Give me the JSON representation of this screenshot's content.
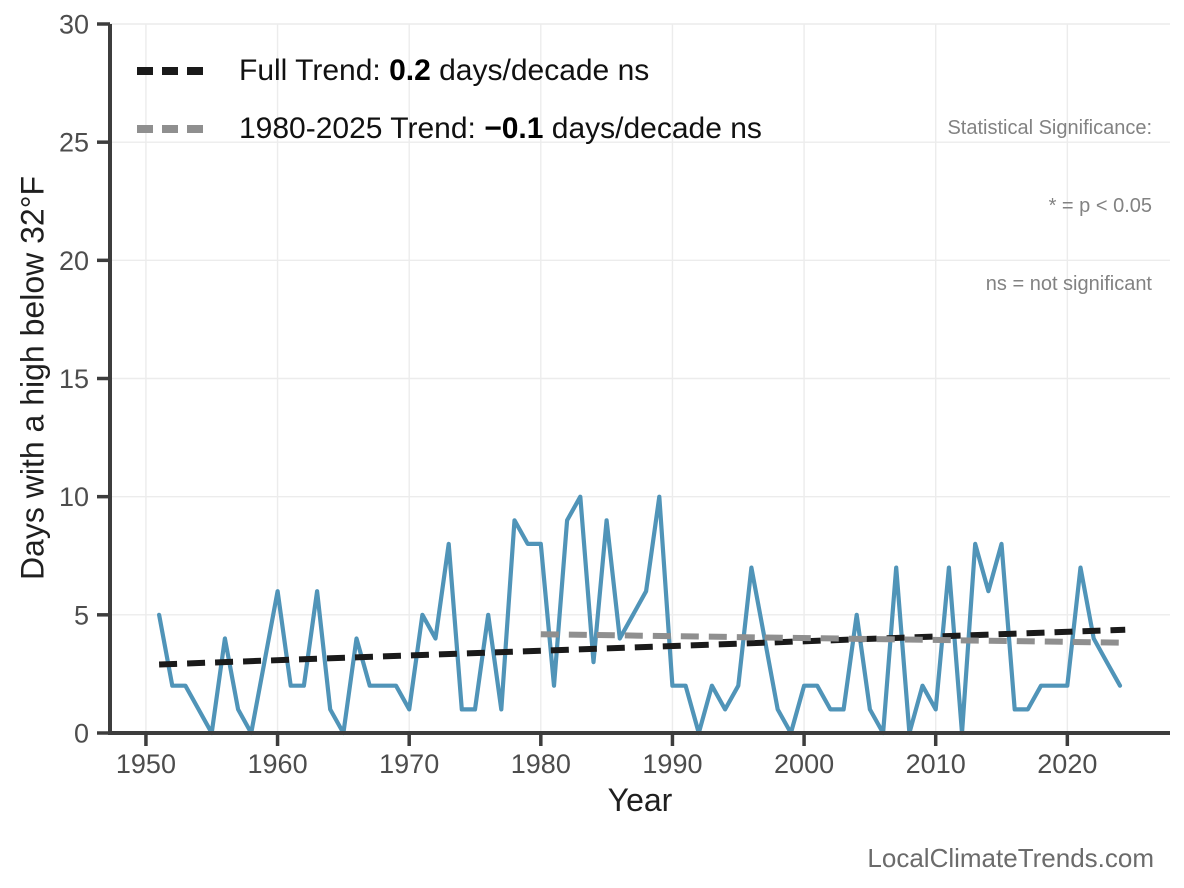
{
  "page": {
    "background": "#ffffff"
  },
  "legend": {
    "full_trend": {
      "prefix": "Full Trend: ",
      "value": "0.2",
      "suffix": " days/decade ns",
      "color": "#1a1a1a"
    },
    "recent_trend": {
      "prefix": "1980-2025 Trend: ",
      "value": "−0.1",
      "suffix": " days/decade ns",
      "color": "#8f8f8f"
    }
  },
  "significance_note": {
    "line1": "Statistical Significance:",
    "line2": "* = p < 0.05",
    "line3": "ns = not significant"
  },
  "footer": {
    "text": "LocalClimateTrends.com"
  },
  "chart_data": {
    "type": "line",
    "title": "",
    "xlabel": "Year",
    "ylabel": "Days with a high below 32°F",
    "xlim": [
      1947.27,
      2027.8
    ],
    "ylim": [
      0,
      30
    ],
    "x_ticks": [
      1950,
      1960,
      1970,
      1980,
      1990,
      2000,
      2010,
      2020
    ],
    "y_ticks": [
      0,
      5,
      10,
      15,
      20,
      25,
      30
    ],
    "grid": true,
    "colors": {
      "axis": "#3d3d3d",
      "grid": "#ececec",
      "tick_label": "#4d4d4d",
      "line": "#5094b8"
    },
    "series": [
      {
        "name": "days-high-below-32",
        "color": "#5094b8",
        "x": [
          1951,
          1952,
          1953,
          1954,
          1955,
          1956,
          1957,
          1958,
          1959,
          1960,
          1961,
          1962,
          1963,
          1964,
          1965,
          1966,
          1967,
          1968,
          1969,
          1970,
          1971,
          1972,
          1973,
          1974,
          1975,
          1976,
          1977,
          1978,
          1979,
          1980,
          1981,
          1982,
          1983,
          1984,
          1985,
          1986,
          1987,
          1988,
          1989,
          1990,
          1991,
          1992,
          1993,
          1994,
          1995,
          1996,
          1997,
          1998,
          1999,
          2000,
          2001,
          2002,
          2003,
          2004,
          2005,
          2006,
          2007,
          2008,
          2009,
          2010,
          2011,
          2012,
          2013,
          2014,
          2015,
          2016,
          2017,
          2018,
          2019,
          2020,
          2021,
          2022,
          2023,
          2024
        ],
        "values": [
          5,
          2,
          2,
          1,
          0,
          4,
          1,
          0,
          3,
          6,
          2,
          2,
          6,
          1,
          0,
          4,
          2,
          2,
          2,
          1,
          5,
          4,
          8,
          1,
          1,
          5,
          1,
          9,
          8,
          8,
          2,
          9,
          10,
          3,
          9,
          4,
          5,
          6,
          10,
          2,
          2,
          0,
          2,
          1,
          2,
          7,
          4,
          1,
          0,
          2,
          2,
          1,
          1,
          5,
          1,
          0,
          7,
          0,
          2,
          1,
          7,
          0,
          8,
          6,
          8,
          1,
          1,
          2,
          2,
          2,
          7,
          4,
          3,
          2
        ]
      }
    ],
    "trend_lines": [
      {
        "name": "full-trend",
        "label": "Full Trend",
        "slope_per_decade": 0.2,
        "significance": "ns",
        "color": "#1a1a1a",
        "x1": 1951,
        "y1": 2.9,
        "x2": 2024.4,
        "y2": 4.37
      },
      {
        "name": "recent-trend",
        "label": "1980-2025 Trend",
        "slope_per_decade": -0.1,
        "significance": "ns",
        "color": "#8f8f8f",
        "x1": 1980,
        "y1": 4.18,
        "x2": 2024.4,
        "y2": 3.82
      }
    ],
    "legend_position": "top-left"
  }
}
